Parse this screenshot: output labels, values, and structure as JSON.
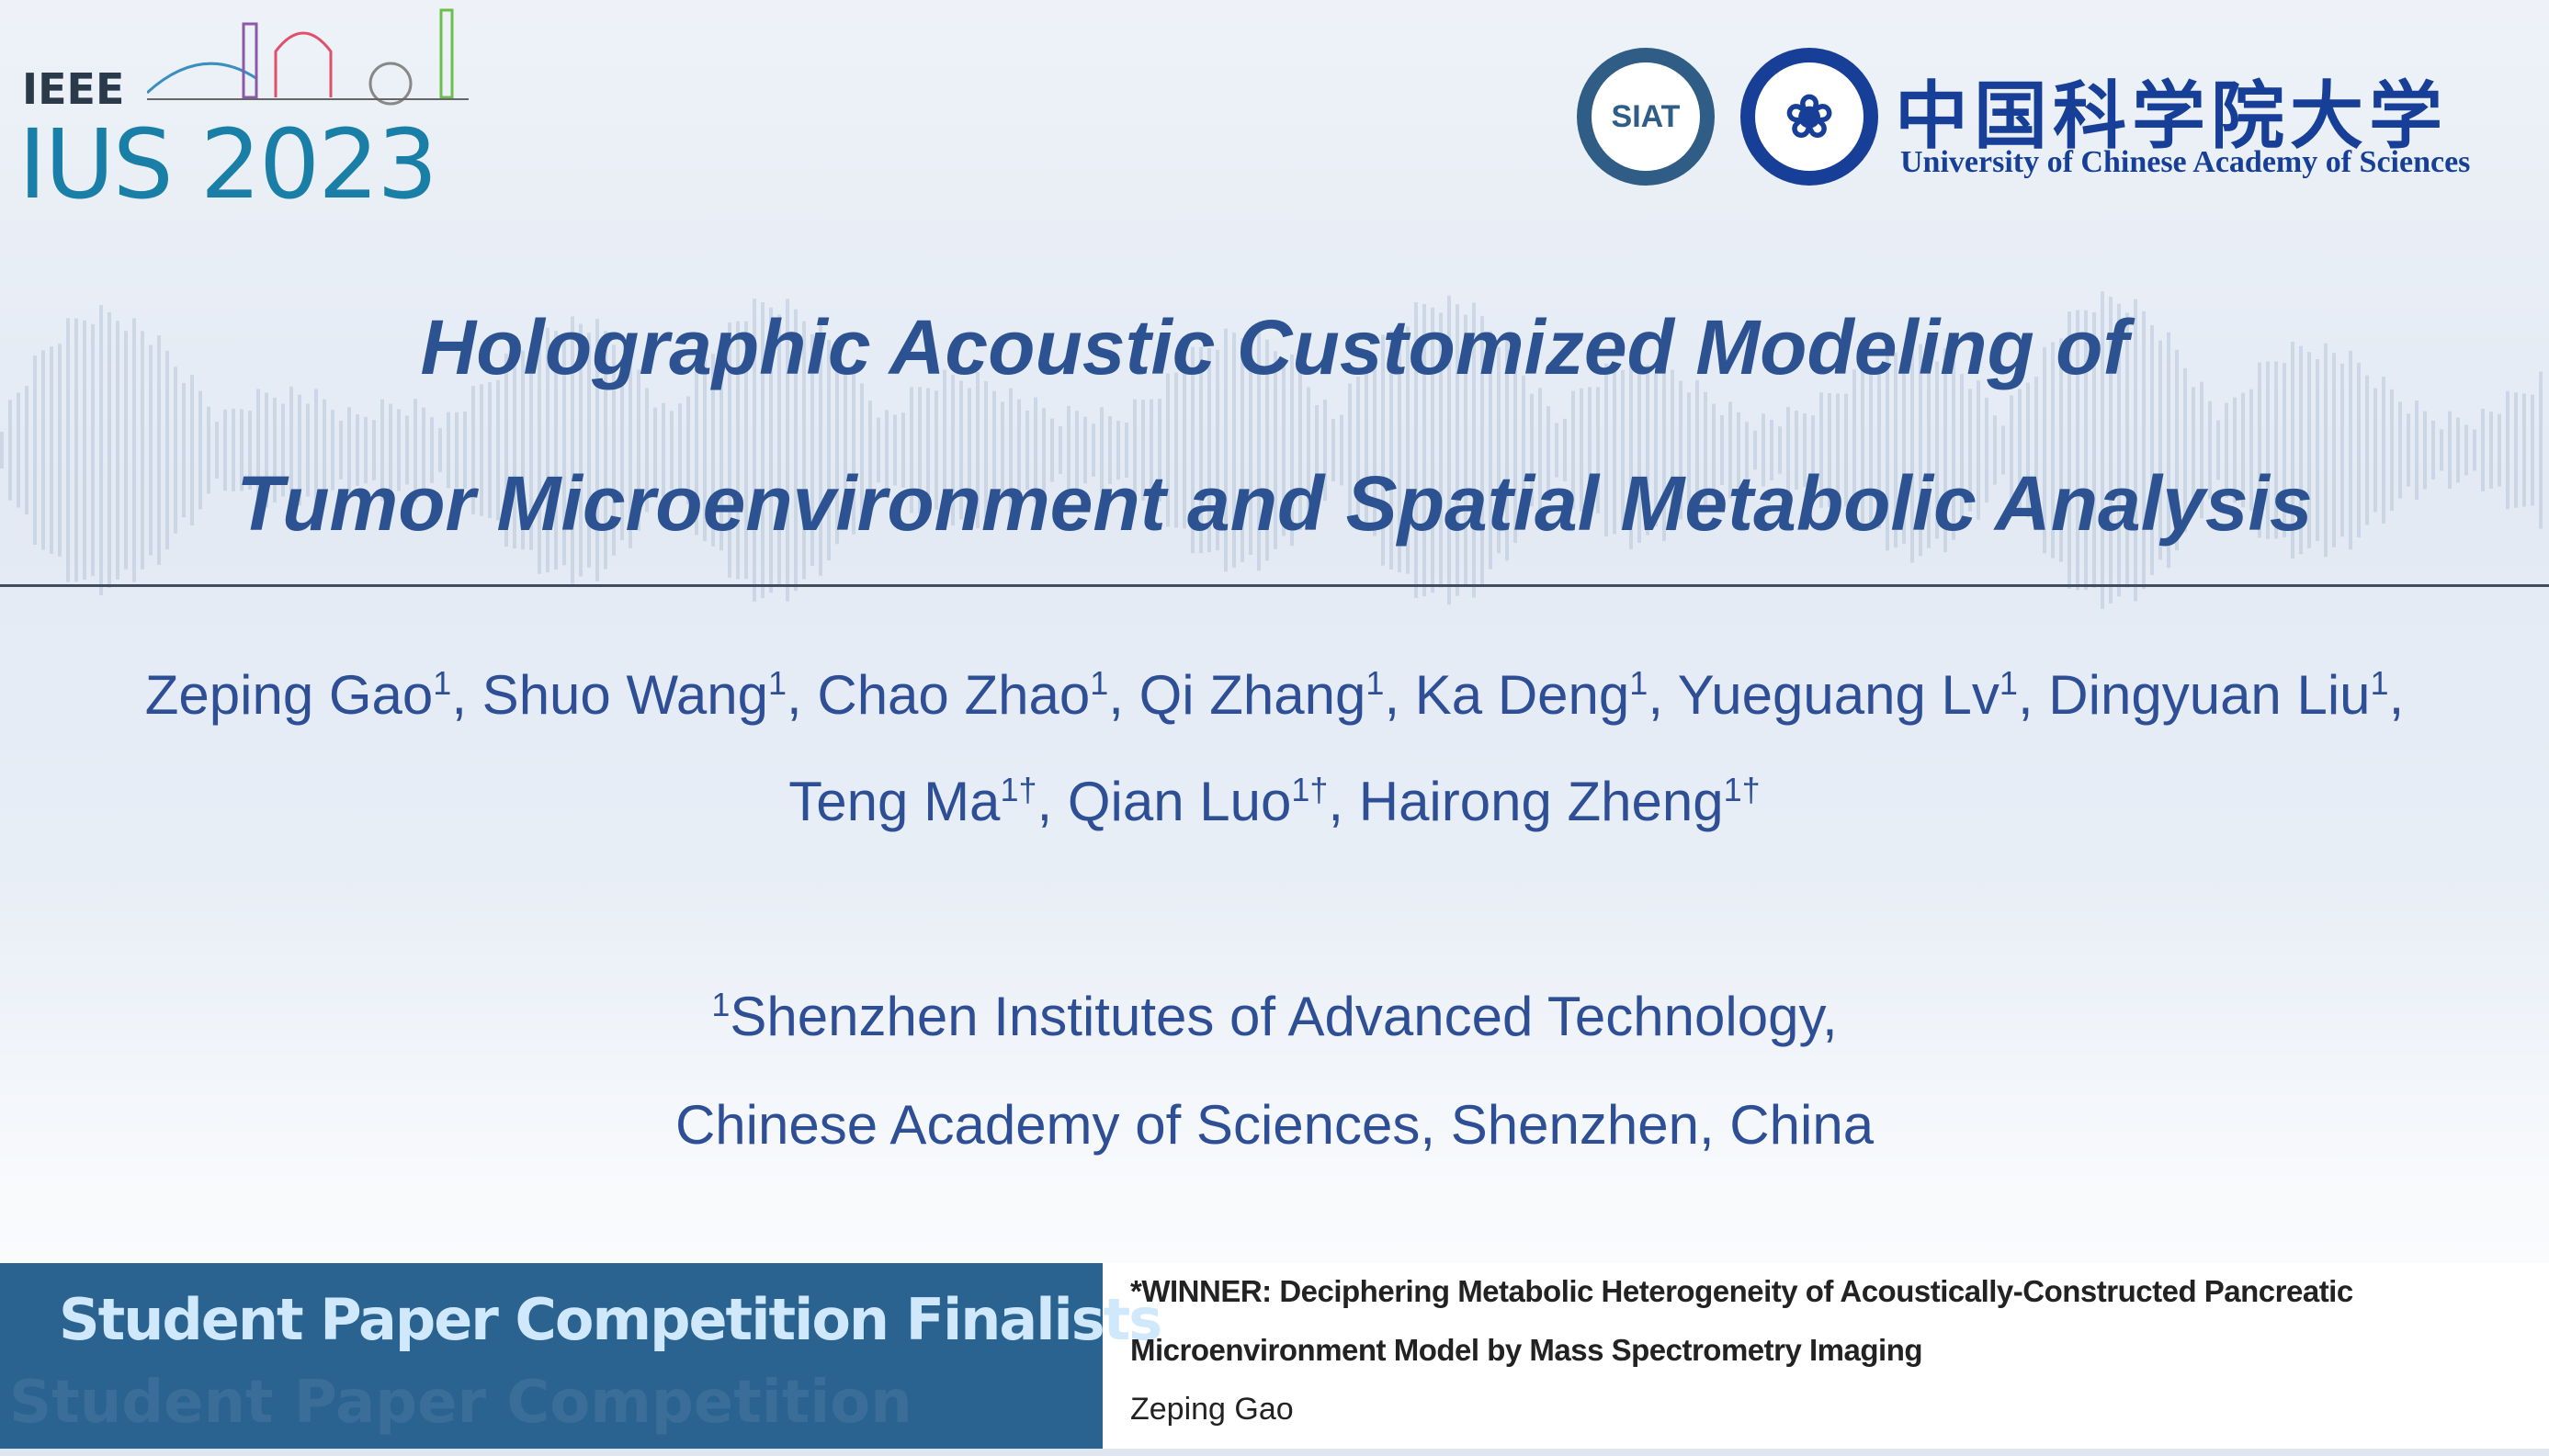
{
  "header": {
    "conference_logo": {
      "org": "IEEE",
      "event": "IUS 2023"
    },
    "siat_logo": {
      "text": "SIAT"
    },
    "cas_logo": {
      "text": "❀"
    },
    "university": {
      "name_cn": "中国科学院大学",
      "name_en": "University of Chinese Academy of Sciences"
    }
  },
  "title": {
    "line1": "Holographic Acoustic Customized Modeling of",
    "line2": "Tumor Microenvironment and Spatial Metabolic Analysis"
  },
  "authors": {
    "line1": [
      {
        "name": "Zeping Gao",
        "mark": "1",
        "sep": ", "
      },
      {
        "name": "Shuo Wang",
        "mark": "1",
        "sep": ", "
      },
      {
        "name": "Chao Zhao",
        "mark": "1",
        "sep": ", "
      },
      {
        "name": "Qi Zhang",
        "mark": "1",
        "sep": ", "
      },
      {
        "name": "Ka Deng",
        "mark": "1",
        "sep": ", "
      },
      {
        "name": "Yueguang Lv",
        "mark": "1",
        "sep": ", "
      },
      {
        "name": "Dingyuan Liu",
        "mark": "1",
        "sep": ","
      }
    ],
    "line2": [
      {
        "name": "Teng Ma",
        "mark": "1†",
        "sep": ", "
      },
      {
        "name": "Qian Luo",
        "mark": "1†",
        "sep": ", "
      },
      {
        "name": "Hairong Zheng",
        "mark": "1†",
        "sep": ""
      }
    ]
  },
  "affiliation": {
    "mark": "1",
    "line1": "Shenzhen Institutes of Advanced Technology,",
    "line2": "Chinese Academy of Sciences, Shenzhen, China"
  },
  "banner": {
    "label": "Student Paper Competition Finalists",
    "ghost_text": "Student Paper Competition",
    "winner_line1": "*WINNER: Deciphering Metabolic Heterogeneity of Acoustically-Constructed Pancreatic",
    "winner_line2": "Microenvironment Model by Mass Spectrometry Imaging",
    "author": "Zeping Gao",
    "colors": {
      "box": "#2a6290",
      "label": "#cfe8fb"
    }
  },
  "colors": {
    "title": "#2d5292",
    "text": "#2e4f96",
    "university": "#173f97"
  }
}
